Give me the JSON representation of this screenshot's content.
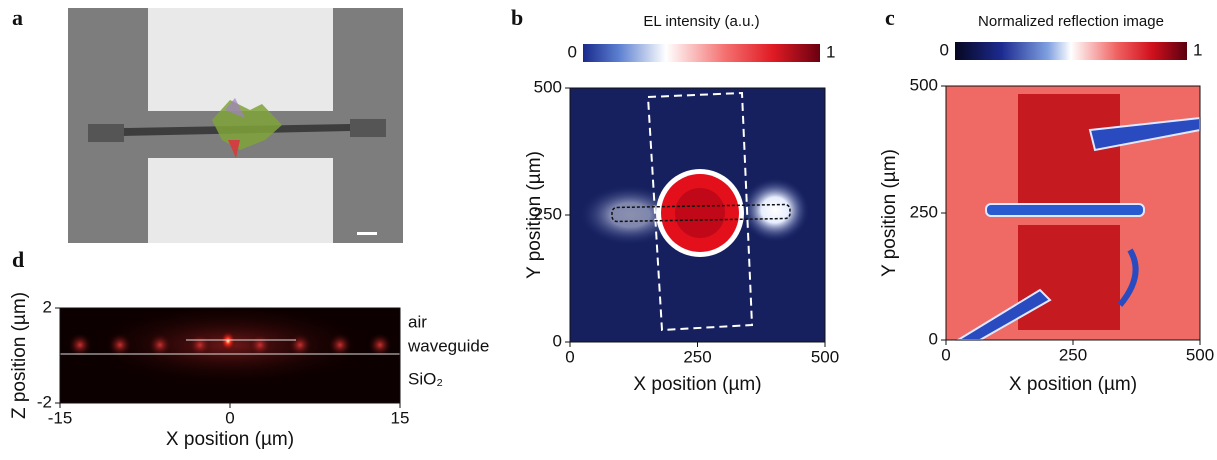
{
  "panels": [
    {
      "label": "a"
    },
    {
      "label": "b",
      "colorbar": {
        "title": "EL intensity (a.u.)",
        "min": 0,
        "max": 1
      },
      "xlabel": "X position (µm)",
      "ylabel": "Y position (µm)",
      "xlim": [
        0,
        500
      ],
      "ylim": [
        0,
        500
      ],
      "xticks": [
        0,
        250,
        500
      ],
      "yticks": [
        0,
        250,
        500
      ]
    },
    {
      "label": "c",
      "colorbar": {
        "title": "Normalized reflection image",
        "min": 0,
        "max": 1
      },
      "xlabel": "X position (µm)",
      "ylabel": "Y position (µm)",
      "xlim": [
        0,
        500
      ],
      "ylim": [
        0,
        500
      ],
      "xticks": [
        0,
        250,
        500
      ],
      "yticks": [
        0,
        250,
        500
      ]
    },
    {
      "label": "d",
      "xlabel": "X position (µm)",
      "ylabel": "Z position (µm)",
      "xlim": [
        -15,
        15
      ],
      "ylim": [
        -2,
        2
      ],
      "xticks": [
        -15,
        0,
        15
      ],
      "yticks": [
        -2,
        2
      ],
      "layers": [
        "air",
        "waveguide",
        "SiO₂"
      ]
    }
  ]
}
